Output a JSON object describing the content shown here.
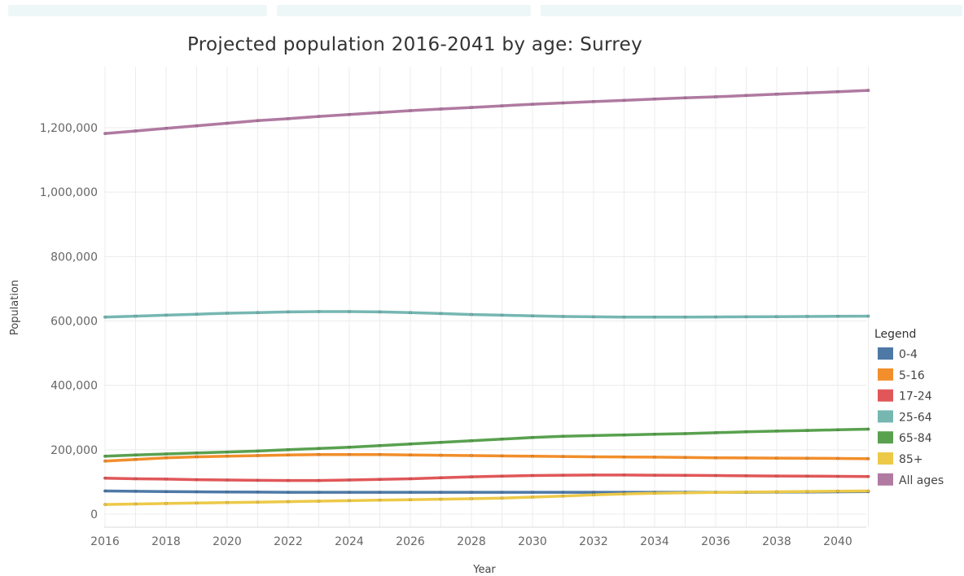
{
  "chart_data": {
    "type": "line",
    "title": "Projected population 2016-2041 by age: Surrey",
    "xlabel": "Year",
    "ylabel": "Population",
    "xlim": [
      2016,
      2041
    ],
    "ylim": [
      0,
      1350000
    ],
    "x_ticks": [
      2016,
      2018,
      2020,
      2022,
      2024,
      2026,
      2028,
      2030,
      2032,
      2034,
      2036,
      2038,
      2040
    ],
    "y_ticks": [
      0,
      200000,
      400000,
      600000,
      800000,
      1000000,
      1200000
    ],
    "y_tick_labels": [
      "0",
      "200,000",
      "400,000",
      "600,000",
      "800,000",
      "1,000,000",
      "1,200,000"
    ],
    "grid": true,
    "legend_title": "Legend",
    "legend_position": "right",
    "x": [
      2016,
      2017,
      2018,
      2019,
      2020,
      2021,
      2022,
      2023,
      2024,
      2025,
      2026,
      2027,
      2028,
      2029,
      2030,
      2031,
      2032,
      2033,
      2034,
      2035,
      2036,
      2037,
      2038,
      2039,
      2040,
      2041
    ],
    "series": [
      {
        "name": "0-4",
        "color": "#4e79a7",
        "values": [
          72000,
          71000,
          70000,
          69500,
          69000,
          68500,
          68000,
          68000,
          68000,
          68000,
          68000,
          68000,
          68000,
          68000,
          68000,
          68000,
          68000,
          68000,
          68000,
          68000,
          68000,
          68000,
          68500,
          69000,
          69500,
          70000
        ]
      },
      {
        "name": "5-16",
        "color": "#f28e2b",
        "values": [
          165000,
          170000,
          175000,
          178000,
          180000,
          182000,
          184000,
          185000,
          185000,
          185000,
          184000,
          183000,
          182000,
          181000,
          180000,
          179000,
          178000,
          177500,
          177000,
          176000,
          175000,
          174500,
          174000,
          173500,
          173000,
          172000
        ]
      },
      {
        "name": "17-24",
        "color": "#e15759",
        "values": [
          112000,
          110000,
          109000,
          107000,
          106000,
          105000,
          104500,
          104500,
          106000,
          108000,
          110000,
          113000,
          116000,
          118000,
          120000,
          121000,
          121500,
          121500,
          121000,
          120500,
          120000,
          119000,
          118500,
          118000,
          117500,
          117000
        ]
      },
      {
        "name": "25-64",
        "color": "#76b7b2",
        "values": [
          612000,
          615000,
          618000,
          621000,
          624000,
          626000,
          628000,
          629000,
          629000,
          628000,
          626000,
          623000,
          620000,
          618000,
          616000,
          614000,
          613000,
          612000,
          612000,
          612000,
          612500,
          613000,
          613500,
          614000,
          614500,
          615000
        ]
      },
      {
        "name": "65-84",
        "color": "#59a14f",
        "values": [
          180000,
          184000,
          187000,
          190000,
          193000,
          196000,
          200000,
          204000,
          208000,
          213000,
          218000,
          223000,
          228000,
          233000,
          238000,
          242000,
          244000,
          246000,
          248000,
          250000,
          253000,
          256000,
          258000,
          260000,
          262000,
          264000
        ]
      },
      {
        "name": "85+",
        "color": "#edc948",
        "values": [
          30000,
          31500,
          33000,
          34500,
          36000,
          37500,
          39000,
          40500,
          42000,
          43500,
          45000,
          46500,
          48000,
          50000,
          53000,
          56000,
          60000,
          63000,
          65000,
          66500,
          67500,
          68500,
          69500,
          70500,
          71500,
          72000
        ]
      },
      {
        "name": "All ages",
        "color": "#b07aa1",
        "values": [
          1182000,
          1190000,
          1198000,
          1206000,
          1214000,
          1222000,
          1228000,
          1235000,
          1241000,
          1247000,
          1253000,
          1258000,
          1263000,
          1268000,
          1273000,
          1277000,
          1281000,
          1285000,
          1289000,
          1293000,
          1296000,
          1300000,
          1304000,
          1308000,
          1312000,
          1316000
        ]
      }
    ]
  }
}
